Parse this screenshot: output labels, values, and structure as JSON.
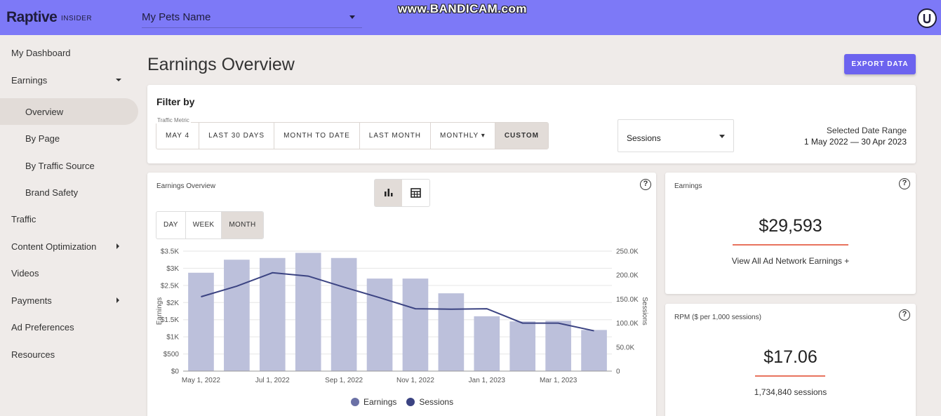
{
  "header": {
    "logo": "Raptive",
    "logo_sub": "INSIDER",
    "site_name": "My Pets Name",
    "watermark": "www.BANDICAM.com"
  },
  "sidebar": {
    "items": [
      {
        "label": "My Dashboard"
      },
      {
        "label": "Earnings"
      },
      {
        "label": "Overview"
      },
      {
        "label": "By Page"
      },
      {
        "label": "By Traffic Source"
      },
      {
        "label": "Brand Safety"
      },
      {
        "label": "Traffic"
      },
      {
        "label": "Content Optimization"
      },
      {
        "label": "Videos"
      },
      {
        "label": "Payments"
      },
      {
        "label": "Ad Preferences"
      },
      {
        "label": "Resources"
      }
    ]
  },
  "page": {
    "title": "Earnings Overview",
    "export_label": "EXPORT DATA"
  },
  "filter": {
    "title": "Filter by",
    "buttons": [
      "MAY 4",
      "LAST 30 DAYS",
      "MONTH TO DATE",
      "LAST MONTH",
      "MONTHLY ▾",
      "CUSTOM"
    ],
    "selected": "CUSTOM",
    "metric_label": "Traffic Metric",
    "metric_value": "Sessions",
    "range_label": "Selected Date Range",
    "range_value": "1 May 2022 — 30 Apr 2023"
  },
  "chart_card": {
    "title": "Earnings Overview",
    "periods": [
      "DAY",
      "WEEK",
      "MONTH"
    ],
    "selected_period": "MONTH",
    "legend": [
      "Earnings",
      "Sessions"
    ]
  },
  "earnings_card": {
    "title": "Earnings",
    "value": "$29,593",
    "link": "View All Ad Network Earnings +"
  },
  "rpm_card": {
    "title": "RPM ($ per 1,000 sessions)",
    "value": "$17.06",
    "sessions": "1,734,840 sessions"
  },
  "colors": {
    "header": "#7d79f7",
    "accent": "#6c63ef",
    "bar": "#bcc0db",
    "line": "#3b4382",
    "underline": "#e8735e"
  },
  "chart_data": {
    "type": "bar",
    "x_ticks": [
      "May 1, 2022",
      "Jul 1, 2022",
      "Sep 1, 2022",
      "Nov 1, 2022",
      "Jan 1, 2023",
      "Mar 1, 2023"
    ],
    "y_left_ticks": [
      "$0",
      "$500",
      "$1K",
      "$1.5K",
      "$2K",
      "$2.5K",
      "$3K",
      "$3.5K"
    ],
    "y_right_ticks": [
      "0",
      "50.0K",
      "100.0K",
      "150.0K",
      "200.0K",
      "250.0K"
    ],
    "ylabel_left": "Earnings",
    "ylabel_right": "Sessions",
    "ylim_left": [
      0,
      3500
    ],
    "ylim_right": [
      0,
      250000
    ],
    "series": [
      {
        "name": "Earnings",
        "type": "bar",
        "values": [
          2870,
          3250,
          3300,
          3450,
          3300,
          2700,
          2700,
          2270,
          1600,
          1450,
          1470,
          1200
        ]
      },
      {
        "name": "Sessions",
        "type": "line",
        "values": [
          155000,
          177000,
          205000,
          198000,
          175000,
          153000,
          130000,
          129000,
          130000,
          100000,
          100000,
          84000
        ]
      }
    ]
  }
}
